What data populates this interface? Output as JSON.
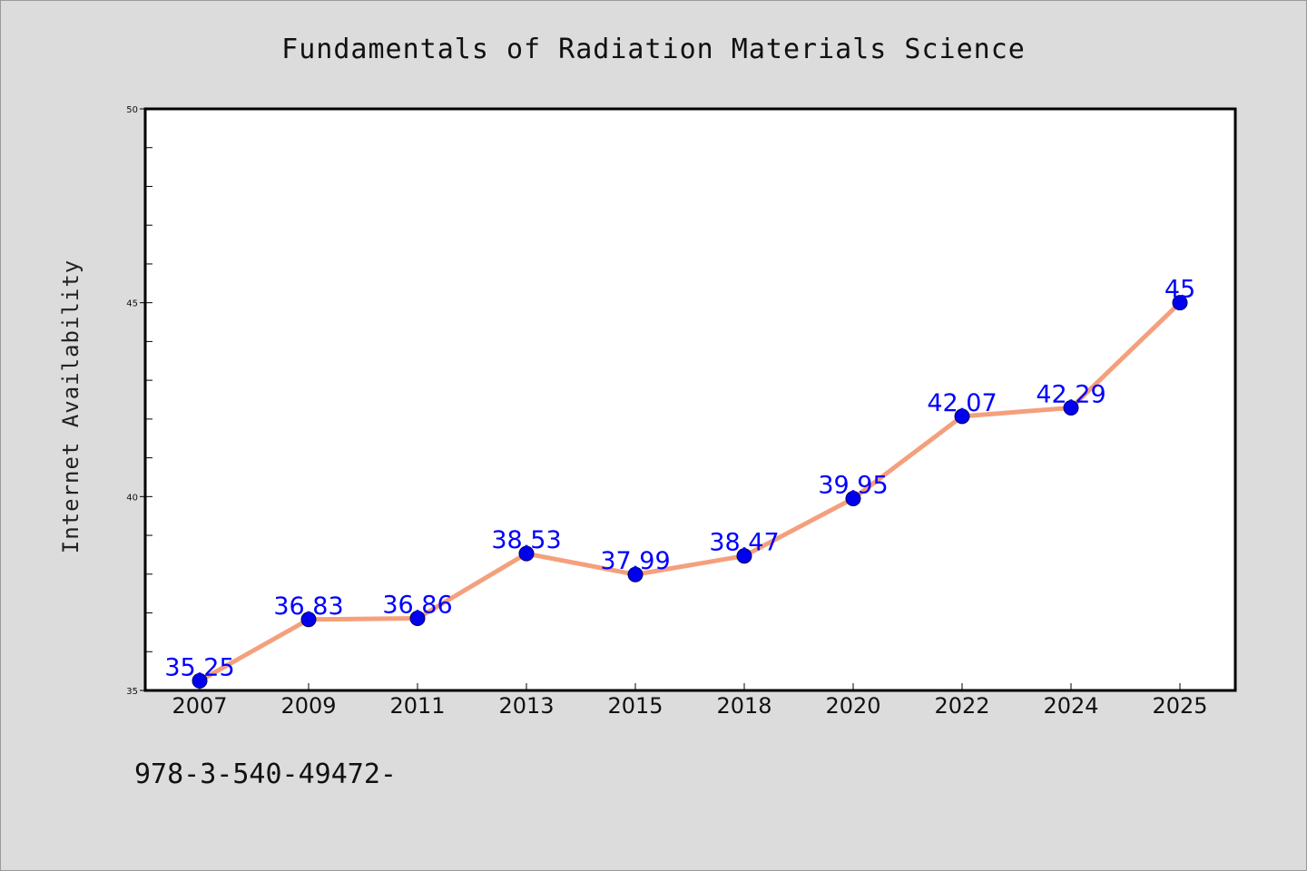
{
  "colors": {
    "background": "#dcdcdc",
    "plot_background": "#ffffff",
    "line": "#f4a07c",
    "marker": "#0000ee",
    "label": "#0000ff",
    "axis": "#000000"
  },
  "footer_text": "978-3-540-49472-",
  "chart_data": {
    "type": "line",
    "title": "Fundamentals of Radiation Materials Science",
    "xlabel": "",
    "ylabel": "Internet Availability",
    "ylim": [
      35,
      50
    ],
    "y_ticks": [
      "35",
      "40",
      "45",
      "50"
    ],
    "minor_tick_step": 1,
    "grid": false,
    "legend": "none",
    "categories": [
      "2007",
      "2009",
      "2011",
      "2013",
      "2015",
      "2018",
      "2020",
      "2022",
      "2024",
      "2025"
    ],
    "values": [
      35.25,
      36.83,
      36.86,
      38.53,
      37.99,
      38.47,
      39.95,
      42.07,
      42.29,
      45
    ],
    "data_labels": [
      "35.25",
      "36.83",
      "36.86",
      "38.53",
      "37.99",
      "38.47",
      "39.95",
      "42.07",
      "42.29",
      "45"
    ]
  }
}
